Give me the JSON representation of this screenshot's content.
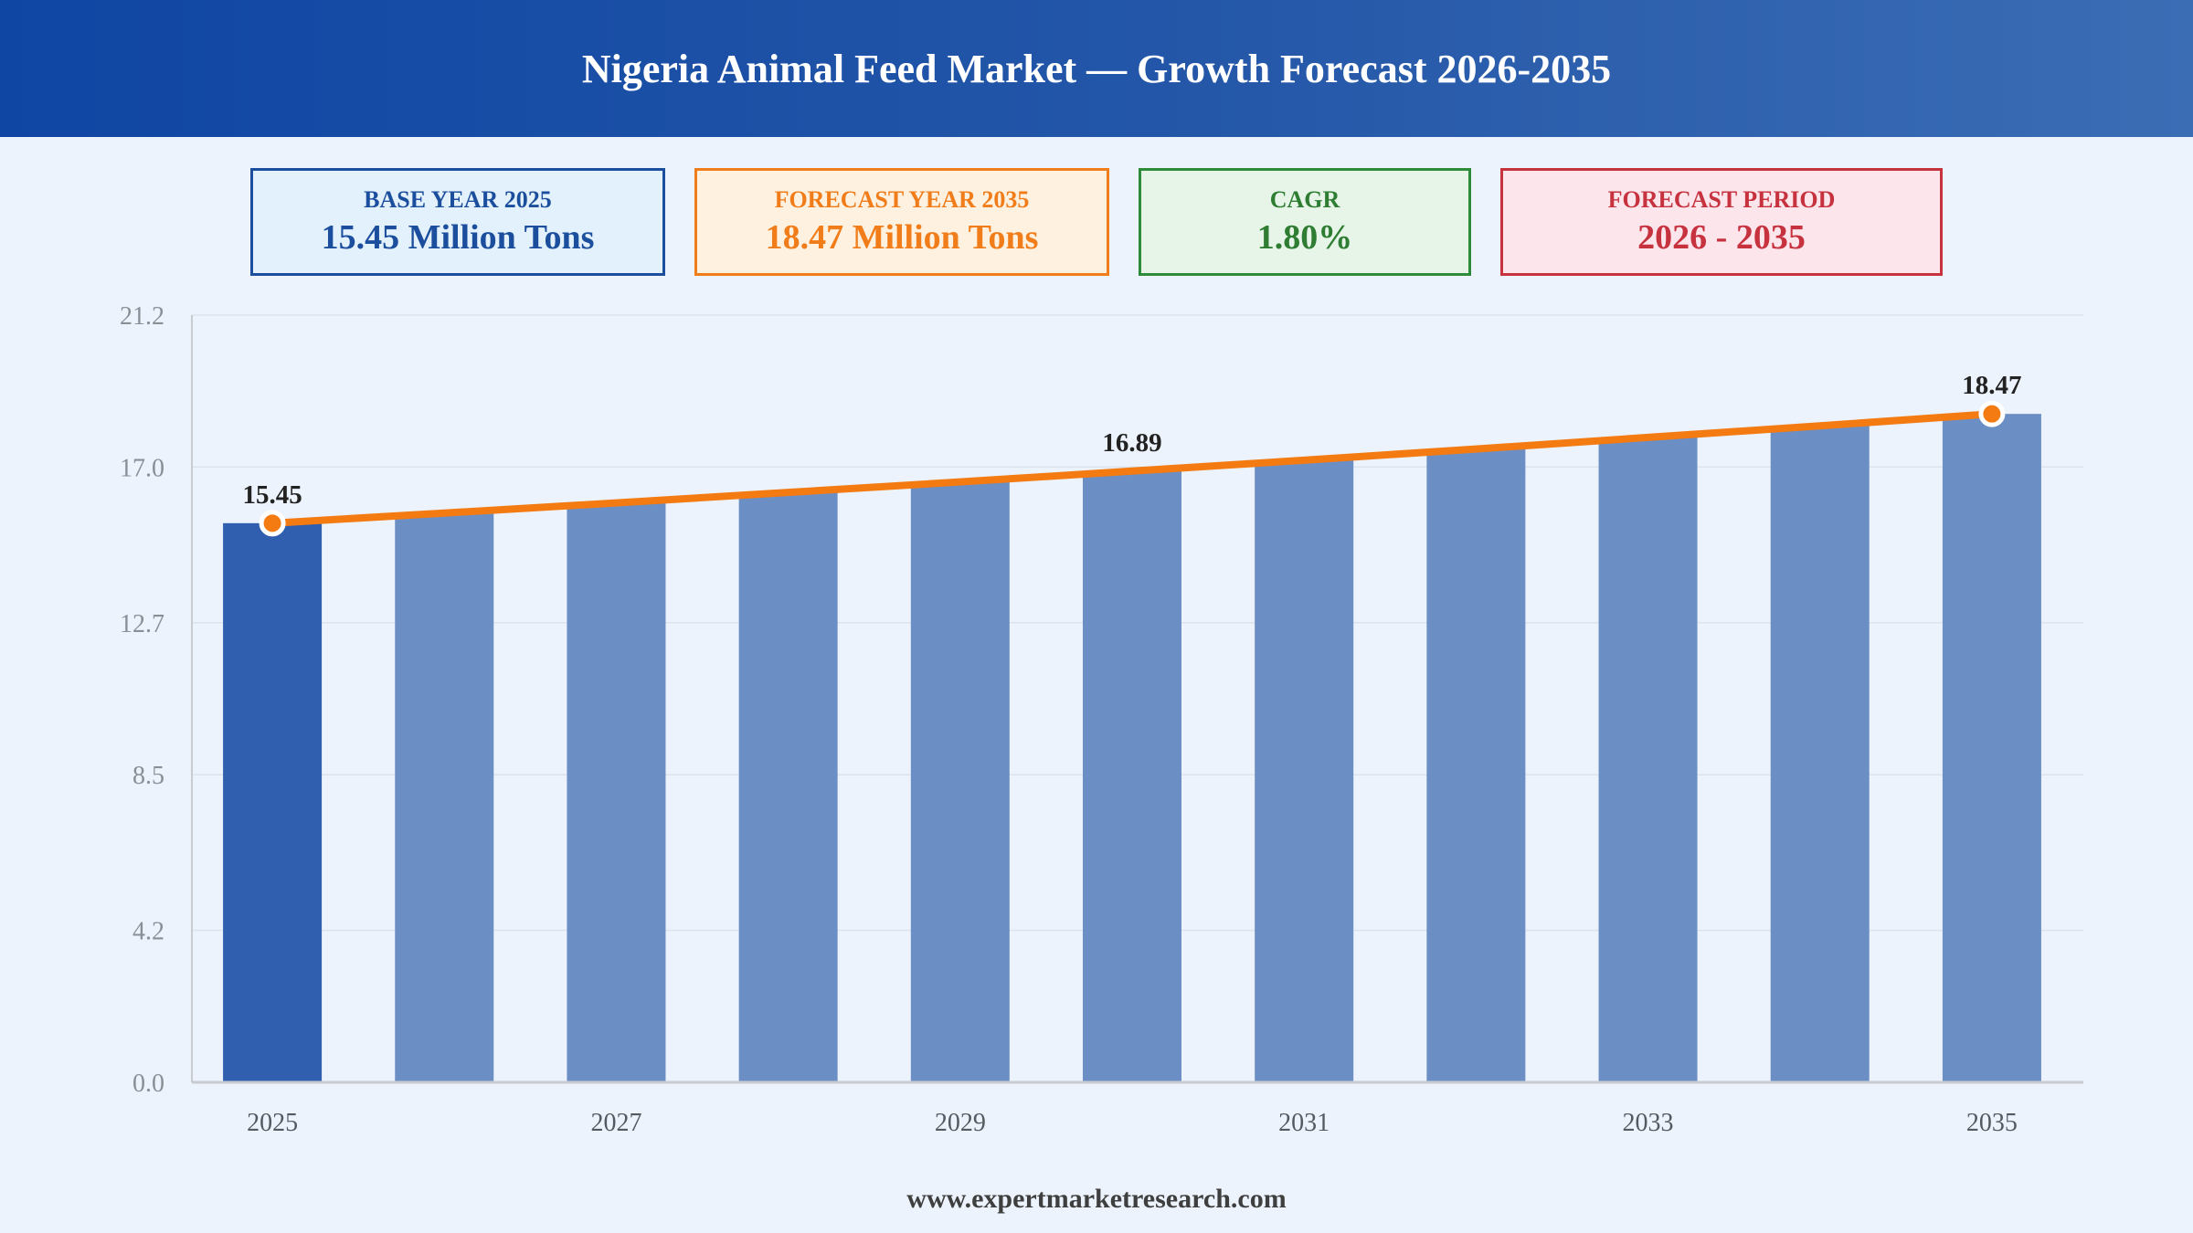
{
  "header": {
    "title": "Nigeria Animal Feed Market — Growth Forecast 2026-2035"
  },
  "kpis": {
    "base": {
      "label": "BASE YEAR 2025",
      "value": "15.45 Million Tons",
      "color": "#1b4e9c"
    },
    "forecast": {
      "label": "FORECAST YEAR 2035",
      "value": "18.47 Million Tons",
      "color": "#f07d1a"
    },
    "cagr": {
      "label": "CAGR",
      "value": "1.80%",
      "color": "#2e7d32"
    },
    "period": {
      "label": "FORECAST PERIOD",
      "value": "2026 - 2035",
      "color": "#c6323e"
    }
  },
  "chart_data": {
    "type": "bar",
    "categories": [
      "2025",
      "2026",
      "2027",
      "2028",
      "2029",
      "2030",
      "2031",
      "2032",
      "2033",
      "2034",
      "2035"
    ],
    "x_tick_labels": [
      "2025",
      "2027",
      "2029",
      "2031",
      "2033",
      "2035"
    ],
    "values": [
      15.45,
      15.73,
      16.01,
      16.3,
      16.59,
      16.89,
      17.19,
      17.5,
      17.82,
      18.14,
      18.47
    ],
    "data_labels": [
      {
        "category": "2025",
        "text": "15.45"
      },
      {
        "category": "2030",
        "text": "16.89"
      },
      {
        "category": "2035",
        "text": "18.47"
      }
    ],
    "trend_line": {
      "color": "#f47a12",
      "markers": [
        "2025",
        "2035"
      ]
    },
    "y_ticks": [
      "0.0",
      "4.2",
      "8.5",
      "12.7",
      "17.0",
      "21.2"
    ],
    "ylim": [
      0,
      21.2
    ],
    "highlight_category": "2025",
    "colors": {
      "base_bar": "#2f5fae",
      "forecast_bar": "#6b8fc4",
      "grid": "#dde3ea",
      "axis": "#c8cbd0"
    },
    "grid": true
  },
  "footer": {
    "source": "www.expertmarketresearch.com"
  }
}
